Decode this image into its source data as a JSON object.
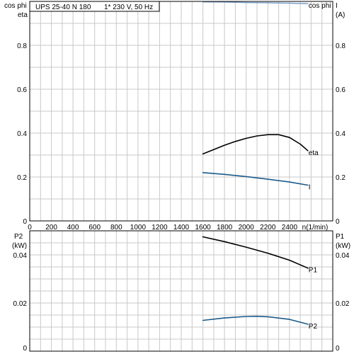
{
  "chart_data": [
    {
      "type": "line",
      "panel": "top",
      "title": "UPS 25-40 N 180",
      "subtitle": "1* 230 V, 50 Hz",
      "xlabel": "n(1/min)",
      "ylabel_left": [
        "cos phi",
        "eta"
      ],
      "ylabel_right": [
        "I",
        "(A)"
      ],
      "xlim": [
        0,
        2800
      ],
      "ylim": [
        0,
        1.0
      ],
      "xticks": [
        "0",
        "200",
        "400",
        "600",
        "800",
        "1000",
        "1200",
        "1400",
        "1600",
        "1800",
        "2000",
        "2200",
        "2400"
      ],
      "yticks": [
        "0",
        "0.2",
        "0.4",
        "0.6",
        "0.8"
      ],
      "grid": true,
      "series": [
        {
          "name": "cos phi",
          "color": "#7b9fc6",
          "x": [
            1600,
            1800,
            2000,
            2200,
            2400,
            2570
          ],
          "y": [
            0.998,
            0.997,
            0.995,
            0.994,
            0.992,
            0.99
          ]
        },
        {
          "name": "eta",
          "color": "#000000",
          "x": [
            1600,
            1700,
            1800,
            1900,
            2000,
            2100,
            2200,
            2300,
            2400,
            2500,
            2570
          ],
          "y": [
            0.305,
            0.325,
            0.345,
            0.362,
            0.376,
            0.387,
            0.393,
            0.393,
            0.38,
            0.35,
            0.32
          ]
        },
        {
          "name": "I",
          "color": "#1a5a8a",
          "x": [
            1600,
            1800,
            2000,
            2200,
            2400,
            2570
          ],
          "y": [
            0.22,
            0.212,
            0.202,
            0.19,
            0.177,
            0.163
          ]
        }
      ]
    },
    {
      "type": "line",
      "panel": "bottom",
      "ylabel_left": [
        "P2",
        "(kW)"
      ],
      "ylabel_right": [
        "P1",
        "(kW)"
      ],
      "xlim": [
        0,
        2800
      ],
      "ylim": [
        0,
        0.05
      ],
      "yticks": [
        "0",
        "0.02",
        "0.04"
      ],
      "grid": true,
      "series": [
        {
          "name": "P1",
          "color": "#000000",
          "x": [
            1600,
            1800,
            2000,
            2200,
            2400,
            2570
          ],
          "y": [
            0.0475,
            0.0455,
            0.0432,
            0.0407,
            0.0378,
            0.0345
          ]
        },
        {
          "name": "P2",
          "color": "#1a5a8a",
          "x": [
            1600,
            1800,
            2000,
            2100,
            2200,
            2400,
            2570
          ],
          "y": [
            0.0128,
            0.0138,
            0.0144,
            0.0145,
            0.0143,
            0.0132,
            0.0112
          ]
        }
      ]
    }
  ]
}
